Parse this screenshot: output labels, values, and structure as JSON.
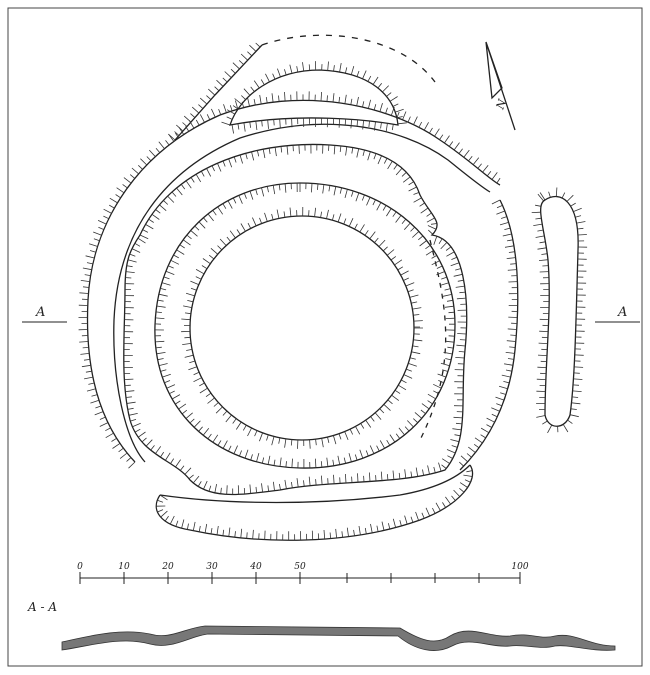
{
  "section_labels": {
    "left": "A",
    "right": "A"
  },
  "north_label": "N",
  "scale": {
    "ticks": [
      0,
      10,
      20,
      30,
      40,
      50,
      100
    ]
  },
  "profile_label": "A - A"
}
